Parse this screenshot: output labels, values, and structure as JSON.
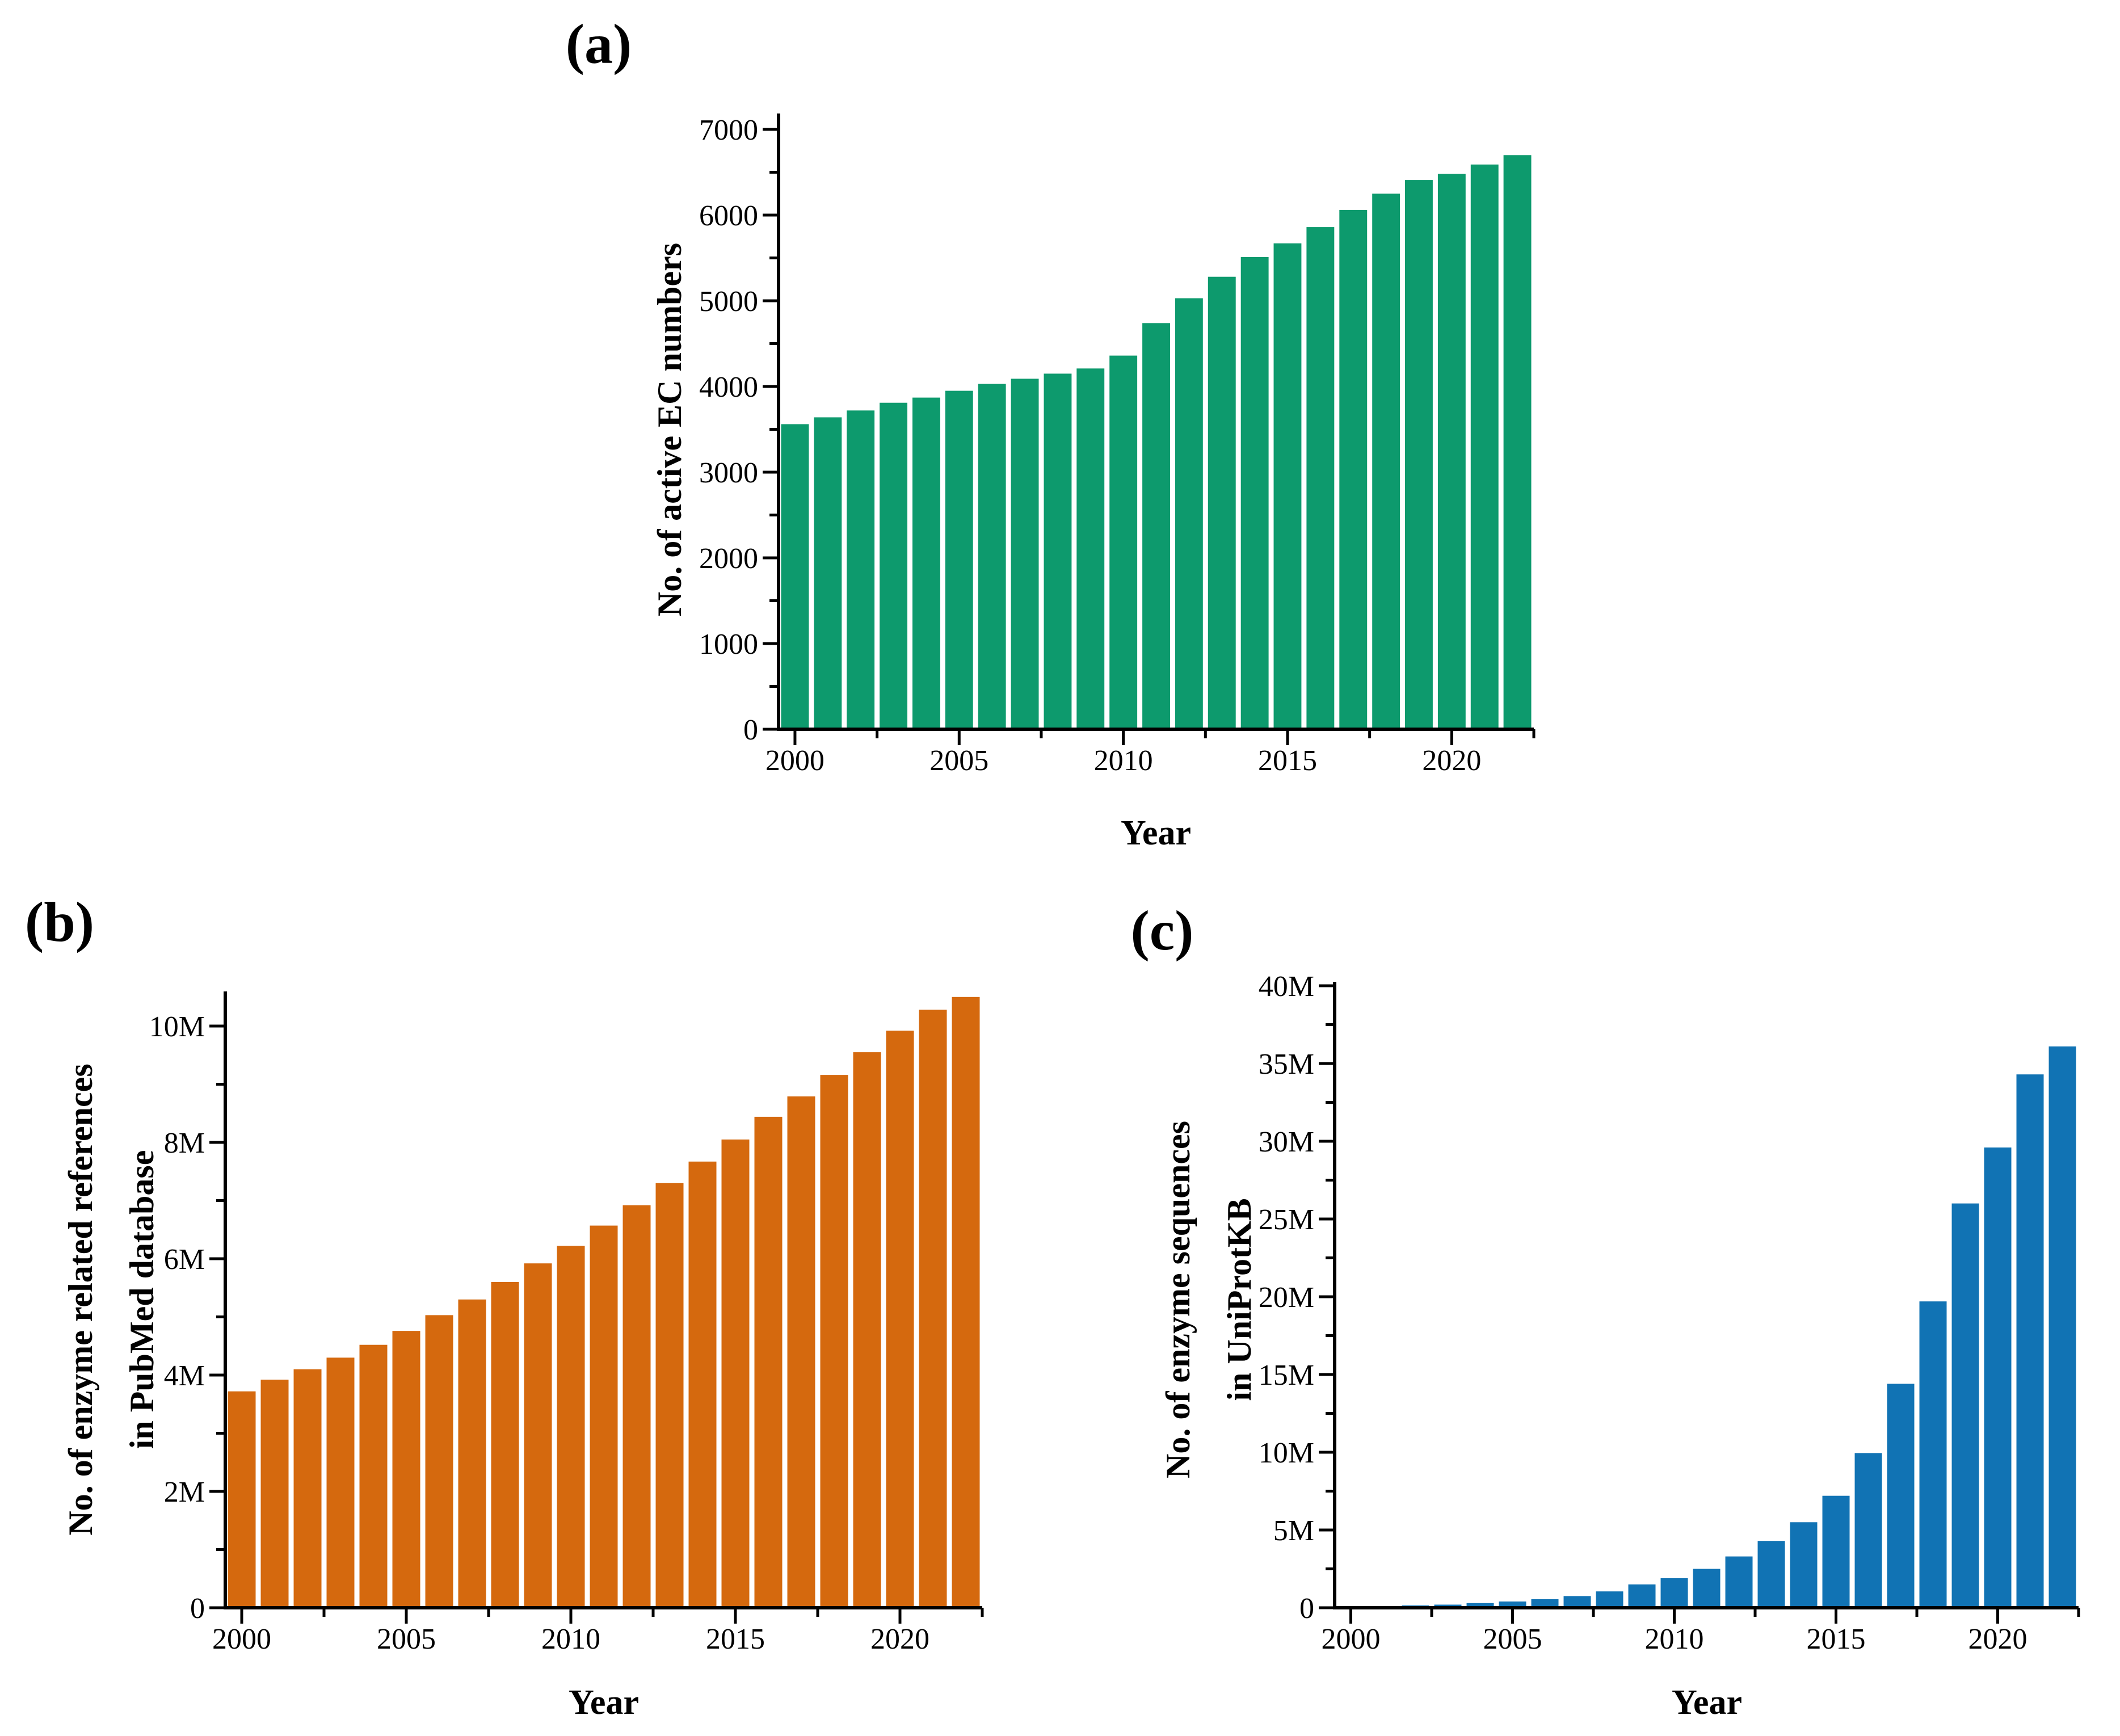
{
  "figure": {
    "background_color": "#ffffff",
    "axis_color": "#000000",
    "x_axis_label": "Year"
  },
  "chart_data": [
    {
      "id": "a",
      "type": "bar",
      "panel_label": "(a)",
      "xlabel": "Year",
      "ylabel_lines": [
        "No. of active EC numbers"
      ],
      "bar_color": "#0D9A6D",
      "grid": "off",
      "legend": "none",
      "x": {
        "years": [
          2000,
          2001,
          2002,
          2003,
          2004,
          2005,
          2006,
          2007,
          2008,
          2009,
          2010,
          2011,
          2012,
          2013,
          2014,
          2015,
          2016,
          2017,
          2018,
          2019,
          2020,
          2021,
          2022
        ],
        "major_tick_years": [
          2000,
          2005,
          2010,
          2015,
          2020
        ],
        "major_tick_labels": [
          "2000",
          "2005",
          "2010",
          "2015",
          "2020"
        ]
      },
      "y": {
        "unit": "count",
        "ylim": [
          0,
          7190
        ],
        "major_tick_step": 1000,
        "minor_tick_step": 500,
        "ticks": [
          {
            "value": 0,
            "label": "0"
          },
          {
            "value": 1000,
            "label": "1000"
          },
          {
            "value": 2000,
            "label": "2000"
          },
          {
            "value": 3000,
            "label": "3000"
          },
          {
            "value": 4000,
            "label": "4000"
          },
          {
            "value": 5000,
            "label": "5000"
          },
          {
            "value": 6000,
            "label": "6000"
          },
          {
            "value": 7000,
            "label": "7000"
          }
        ]
      },
      "values": [
        3560,
        3640,
        3720,
        3810,
        3870,
        3950,
        4030,
        4090,
        4150,
        4210,
        4360,
        4740,
        5030,
        5280,
        5510,
        5670,
        5860,
        6060,
        6250,
        6410,
        6480,
        6590,
        6700
      ]
    },
    {
      "id": "b",
      "type": "bar",
      "panel_label": "(b)",
      "xlabel": "Year",
      "ylabel_lines": [
        "No. of enzyme related references",
        "in PubMed database"
      ],
      "bar_color": "#D5690E",
      "grid": "off",
      "legend": "none",
      "x": {
        "years": [
          2000,
          2001,
          2002,
          2003,
          2004,
          2005,
          2006,
          2007,
          2008,
          2009,
          2010,
          2011,
          2012,
          2013,
          2014,
          2015,
          2016,
          2017,
          2018,
          2019,
          2020,
          2021,
          2022
        ],
        "major_tick_years": [
          2000,
          2005,
          2010,
          2015,
          2020
        ],
        "major_tick_labels": [
          "2000",
          "2005",
          "2010",
          "2015",
          "2020"
        ]
      },
      "y": {
        "unit": "millions",
        "ylim": [
          0,
          10.6
        ],
        "major_tick_step": 2,
        "minor_tick_step": 1,
        "ticks": [
          {
            "value": 0,
            "label": "0"
          },
          {
            "value": 2,
            "label": "2M"
          },
          {
            "value": 4,
            "label": "4M"
          },
          {
            "value": 6,
            "label": "6M"
          },
          {
            "value": 8,
            "label": "8M"
          },
          {
            "value": 10,
            "label": "10M"
          }
        ]
      },
      "values": [
        3.72,
        3.92,
        4.1,
        4.3,
        4.52,
        4.76,
        5.03,
        5.3,
        5.6,
        5.92,
        6.22,
        6.57,
        6.92,
        7.3,
        7.67,
        8.05,
        8.44,
        8.79,
        9.16,
        9.55,
        9.92,
        10.28,
        10.5
      ]
    },
    {
      "id": "c",
      "type": "bar",
      "panel_label": "(c)",
      "xlabel": "Year",
      "ylabel_lines": [
        "No. of enzyme sequences",
        "in UniProtKB"
      ],
      "bar_color": "#1173B4",
      "grid": "off",
      "legend": "none",
      "x": {
        "years": [
          2000,
          2001,
          2002,
          2003,
          2004,
          2005,
          2006,
          2007,
          2008,
          2009,
          2010,
          2011,
          2012,
          2013,
          2014,
          2015,
          2016,
          2017,
          2018,
          2019,
          2020,
          2021,
          2022
        ],
        "major_tick_years": [
          2000,
          2005,
          2010,
          2015,
          2020
        ],
        "major_tick_labels": [
          "2000",
          "2005",
          "2010",
          "2015",
          "2020"
        ]
      },
      "y": {
        "unit": "millions",
        "ylim": [
          0,
          40.3
        ],
        "major_tick_step": 5,
        "minor_tick_step": 2.5,
        "ticks": [
          {
            "value": 0,
            "label": "0"
          },
          {
            "value": 5,
            "label": "5M"
          },
          {
            "value": 10,
            "label": "10M"
          },
          {
            "value": 15,
            "label": "15M"
          },
          {
            "value": 20,
            "label": "20M"
          },
          {
            "value": 25,
            "label": "25M"
          },
          {
            "value": 30,
            "label": "30M"
          },
          {
            "value": 35,
            "label": "35M"
          },
          {
            "value": 40,
            "label": "40M"
          }
        ]
      },
      "values": [
        0.05,
        0.1,
        0.15,
        0.2,
        0.3,
        0.4,
        0.55,
        0.75,
        1.05,
        1.5,
        1.9,
        2.5,
        3.3,
        4.3,
        5.5,
        7.2,
        9.95,
        14.4,
        19.7,
        26.0,
        29.6,
        34.3,
        36.1
      ]
    }
  ]
}
